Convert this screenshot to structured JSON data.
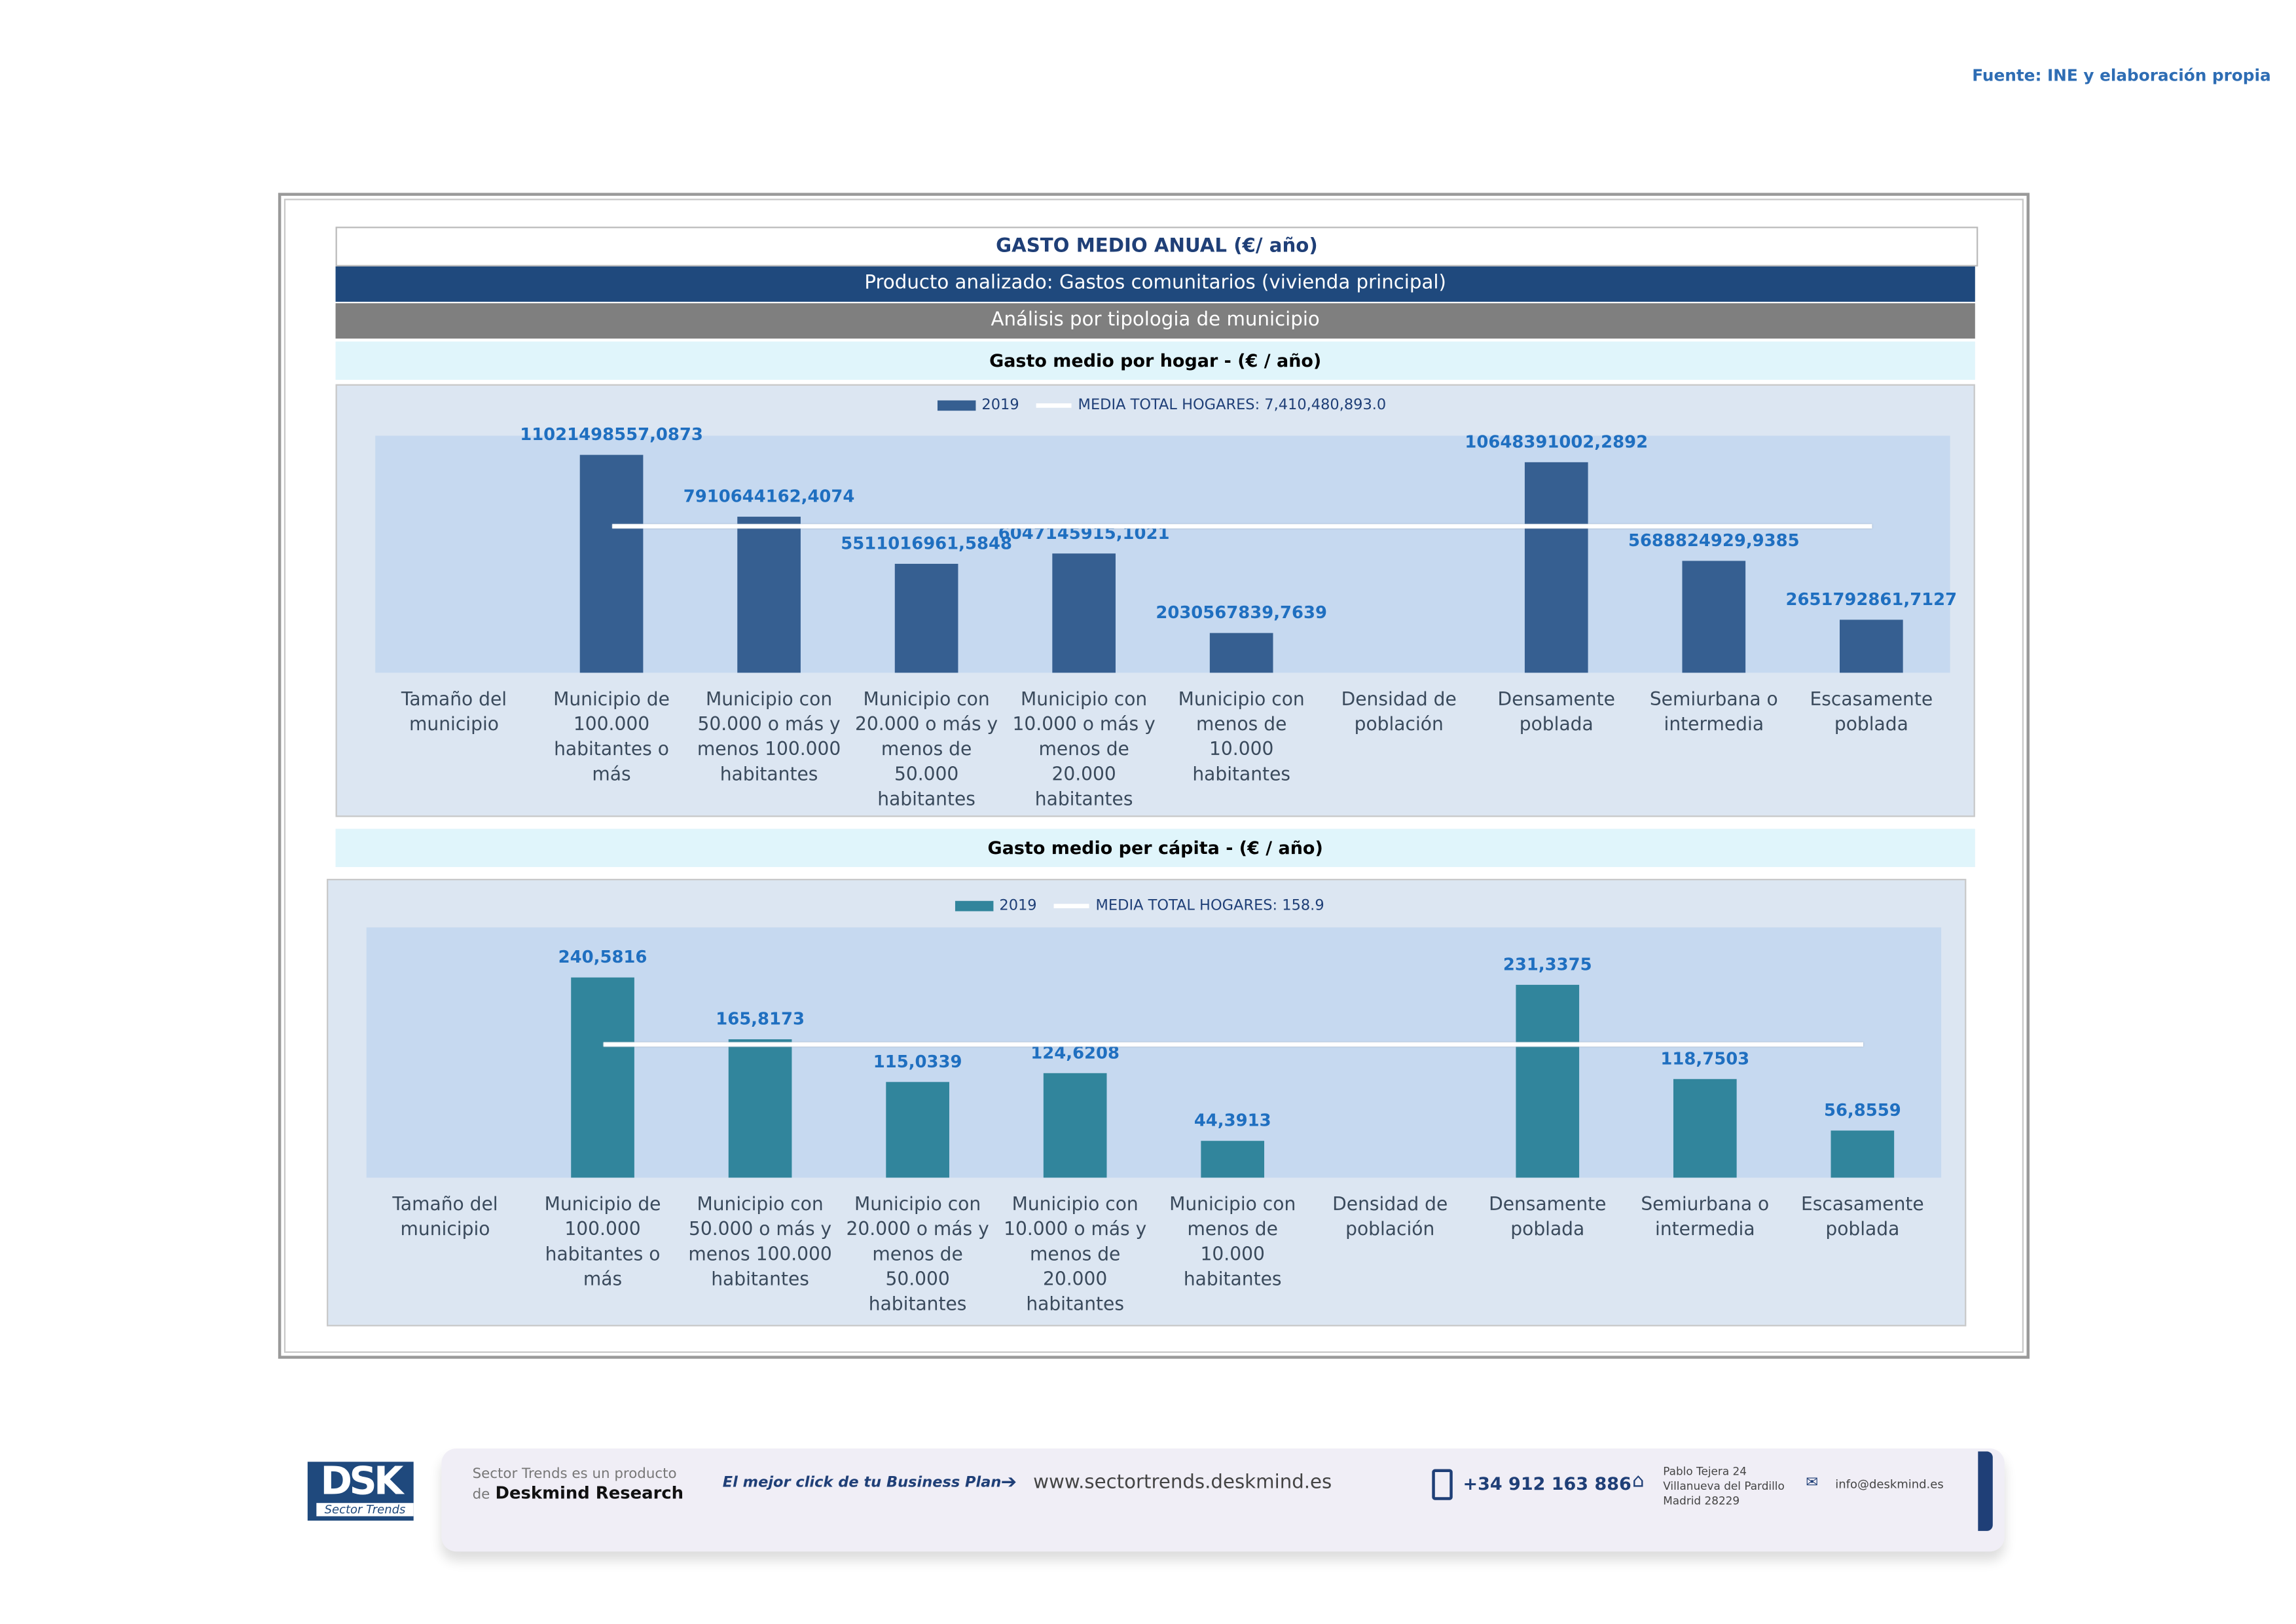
{
  "source": "Fuente: INE y elaboración propia",
  "header": {
    "title": "GASTO MEDIO ANUAL (€/ año)",
    "product": "Producto analizado: Gastos comunitarios (vivienda principal)",
    "analysis": "Análisis por tipologia de municipio"
  },
  "chart_data": [
    {
      "type": "bar",
      "title": "Gasto medio por hogar -  (€ / año)",
      "legend": {
        "series": "2019",
        "mean_label": "MEDIA TOTAL  HOGARES:   7,410,480,893.0",
        "placement": "top-center"
      },
      "mean": 7410480893.0,
      "color": "#365f91",
      "ylim": [
        0,
        12000000000
      ],
      "categories": [
        "Tamaño del municipio",
        "Municipio de 100.000 habitantes o más",
        "Municipio con 50.000 o más y menos 100.000 habitantes",
        "Municipio con 20.000 o más y menos de 50.000 habitantes",
        "Municipio con 10.000 o más y menos de 20.000 habitantes",
        "Municipio con menos de 10.000 habitantes",
        "Densidad de población",
        "Densamente poblada",
        "Semiurbana o intermedia",
        "Escasamente poblada"
      ],
      "values": [
        null,
        11021498557.0873,
        7910644162.4074,
        5511016961.5848,
        6047145915.1021,
        2030567839.7639,
        null,
        10648391002.2892,
        5688824929.9385,
        2651792861.7127
      ],
      "labels": [
        "",
        "11021498557,0873",
        "7910644162,4074",
        "5511016961,5848",
        "6047145915,1021",
        "2030567839,7639",
        "",
        "10648391002,2892",
        "5688824929,9385",
        "2651792861,7127"
      ]
    },
    {
      "type": "bar",
      "title": "Gasto medio per cápita -  (€ / año)",
      "legend": {
        "series": "2019",
        "mean_label": "MEDIA TOTAL  HOGARES:   158.9",
        "placement": "top-center"
      },
      "mean": 158.9,
      "color": "#31859c",
      "ylim": [
        0,
        300
      ],
      "categories": [
        "Tamaño del municipio",
        "Municipio de 100.000 habitantes o más",
        "Municipio con 50.000 o más y menos 100.000 habitantes",
        "Municipio con 20.000 o más y menos de 50.000 habitantes",
        "Municipio con 10.000 o más y menos de 20.000 habitantes",
        "Municipio con menos de 10.000 habitantes",
        "Densidad de población",
        "Densamente poblada",
        "Semiurbana o intermedia",
        "Escasamente poblada"
      ],
      "values": [
        null,
        240.5816,
        165.8173,
        115.0339,
        124.6208,
        44.3913,
        null,
        231.3375,
        118.7503,
        56.8559
      ],
      "labels": [
        "",
        "240,5816",
        "165,8173",
        "115,0339",
        "124,6208",
        "44,3913",
        "",
        "231,3375",
        "118,7503",
        "56,8559"
      ]
    }
  ],
  "footer": {
    "logo": "DSK",
    "logo_sub": "Sector Trends",
    "product_line1": "Sector Trends es un producto",
    "product_de": "de",
    "product_brand": "Deskmind Research",
    "slogan": "El mejor click de tu Business Plan",
    "website": "www.sectortrends.deskmind.es",
    "phone": "+34 912 163 886",
    "address": [
      "Pablo Tejera 24",
      "Villanueva del Pardillo",
      "Madrid 28229"
    ],
    "email": "info@deskmind.es"
  }
}
